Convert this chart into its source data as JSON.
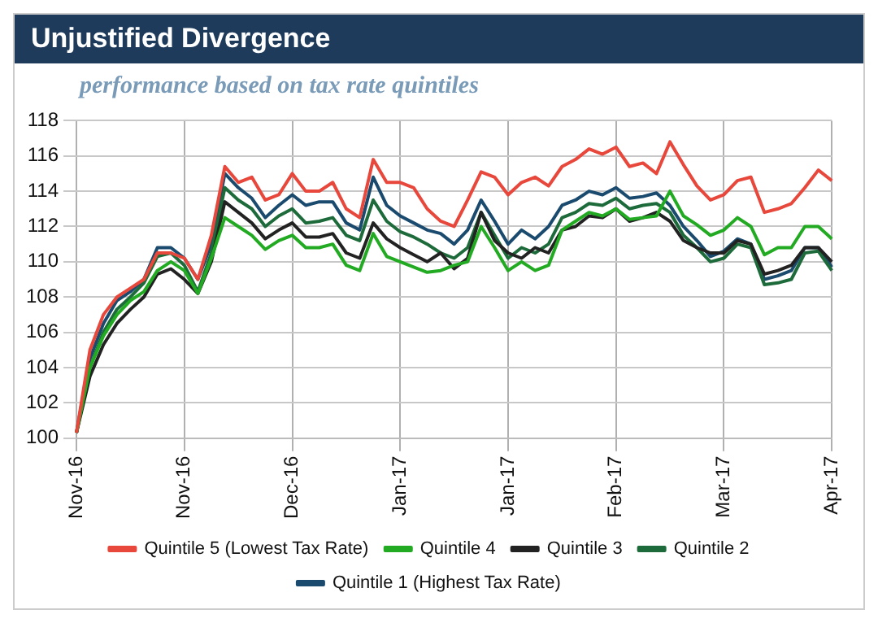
{
  "chart_data": {
    "type": "line",
    "title": "Unjustified Divergence",
    "subtitle": "performance based on tax rate quintiles",
    "categories": [
      "Nov-16",
      null,
      null,
      null,
      null,
      null,
      null,
      null,
      "Nov-16",
      null,
      null,
      null,
      null,
      null,
      null,
      null,
      "Dec-16",
      null,
      null,
      null,
      null,
      null,
      null,
      null,
      "Jan-17",
      null,
      null,
      null,
      null,
      null,
      null,
      null,
      "Jan-17",
      null,
      null,
      null,
      null,
      null,
      null,
      null,
      "Feb-17",
      null,
      null,
      null,
      null,
      null,
      null,
      null,
      "Mar-17",
      null,
      null,
      null,
      null,
      null,
      null,
      null,
      "Apr-17"
    ],
    "ylim": [
      100,
      118
    ],
    "yticks": [
      100,
      102,
      104,
      106,
      108,
      110,
      112,
      114,
      116,
      118
    ],
    "grid": true,
    "legend": "bottom",
    "marker": "none",
    "line_style": "solid",
    "series": [
      {
        "name": "Quintile 5 (Lowest Tax Rate)",
        "color": "#e8473c",
        "values": [
          100.3,
          105,
          107,
          108,
          108.5,
          109,
          110.5,
          110.5,
          110.2,
          109,
          111.5,
          115.4,
          114.5,
          114.8,
          113.5,
          113.8,
          115,
          114,
          114,
          114.5,
          113,
          112.5,
          115.8,
          114.5,
          114.5,
          114.2,
          113,
          112.3,
          112,
          113.5,
          115.1,
          114.8,
          113.8,
          114.5,
          114.8,
          114.3,
          115.4,
          115.8,
          116.4,
          116.1,
          116.5,
          115.4,
          115.6,
          115,
          116.8,
          115.5,
          114.3,
          113.5,
          113.8,
          114.6,
          114.8,
          112.8,
          113,
          113.3,
          114.2,
          115.2,
          114.6
        ]
      },
      {
        "name": "Quintile 4",
        "color": "#22aa22",
        "values": [
          100.3,
          104,
          105.8,
          107,
          107.8,
          108.3,
          109.5,
          110,
          109.5,
          108.2,
          110.2,
          112.5,
          112,
          111.5,
          110.7,
          111.2,
          111.5,
          110.8,
          110.8,
          111,
          109.8,
          109.5,
          111.6,
          110.3,
          110,
          109.7,
          109.4,
          109.5,
          109.8,
          110,
          112,
          110.8,
          109.5,
          110,
          109.5,
          109.8,
          111.8,
          112.3,
          112.8,
          112.6,
          113,
          112.4,
          112.5,
          112.6,
          114,
          112.6,
          112.1,
          111.5,
          111.8,
          112.5,
          112,
          110.4,
          110.8,
          110.8,
          112,
          112,
          111.3
        ]
      },
      {
        "name": "Quintile 3",
        "color": "#222222",
        "values": [
          100.3,
          103.5,
          105.3,
          106.5,
          107.3,
          108,
          109.3,
          109.6,
          109,
          108.2,
          110,
          113.4,
          112.8,
          112.2,
          111.3,
          111.8,
          112.2,
          111.4,
          111.4,
          111.6,
          110.5,
          110.2,
          112.2,
          111.3,
          110.8,
          110.4,
          110,
          110.5,
          109.6,
          110.2,
          112.8,
          111.2,
          110.5,
          110.2,
          110.8,
          110.5,
          111.8,
          112,
          112.6,
          112.5,
          113,
          112.3,
          112.5,
          112.8,
          112.3,
          111.2,
          110.8,
          110.5,
          110.5,
          111.2,
          111,
          109.3,
          109.5,
          109.8,
          110.8,
          110.8,
          110
        ]
      },
      {
        "name": "Quintile 2",
        "color": "#1d6b3a",
        "values": [
          100.3,
          104,
          106,
          107.3,
          108,
          108.8,
          110.3,
          110.5,
          109.8,
          108.3,
          110.5,
          114.2,
          113.5,
          113,
          112,
          112.6,
          113,
          112.2,
          112.3,
          112.5,
          111.5,
          111.2,
          113.5,
          112.3,
          111.7,
          111.4,
          111,
          110.5,
          110.2,
          110.8,
          112.8,
          111.5,
          110.2,
          110.8,
          110.5,
          111,
          112.5,
          112.8,
          113.3,
          113.2,
          113.6,
          113,
          113.2,
          113.3,
          112.8,
          111.5,
          110.8,
          110,
          110.2,
          111,
          110.8,
          108.7,
          108.8,
          109,
          110.5,
          110.6,
          109.5
        ]
      },
      {
        "name": "Quintile 1 (Highest Tax Rate)",
        "color": "#1a4a6e",
        "values": [
          100.3,
          104.5,
          106.5,
          107.8,
          108.3,
          109,
          110.8,
          110.8,
          110.2,
          109,
          111,
          115,
          114.2,
          113.6,
          112.5,
          113.2,
          113.8,
          113.2,
          113.4,
          113.4,
          112.2,
          111.8,
          114.8,
          113.2,
          112.6,
          112.2,
          111.8,
          111.6,
          111,
          111.8,
          113.5,
          112.3,
          111,
          111.8,
          111.3,
          112,
          113.2,
          113.5,
          114,
          113.8,
          114.2,
          113.6,
          113.7,
          113.9,
          113.2,
          112,
          111.2,
          110.3,
          110.6,
          111.3,
          111,
          109,
          109.2,
          109.5,
          110.8,
          110.8,
          109.7
        ]
      }
    ]
  }
}
